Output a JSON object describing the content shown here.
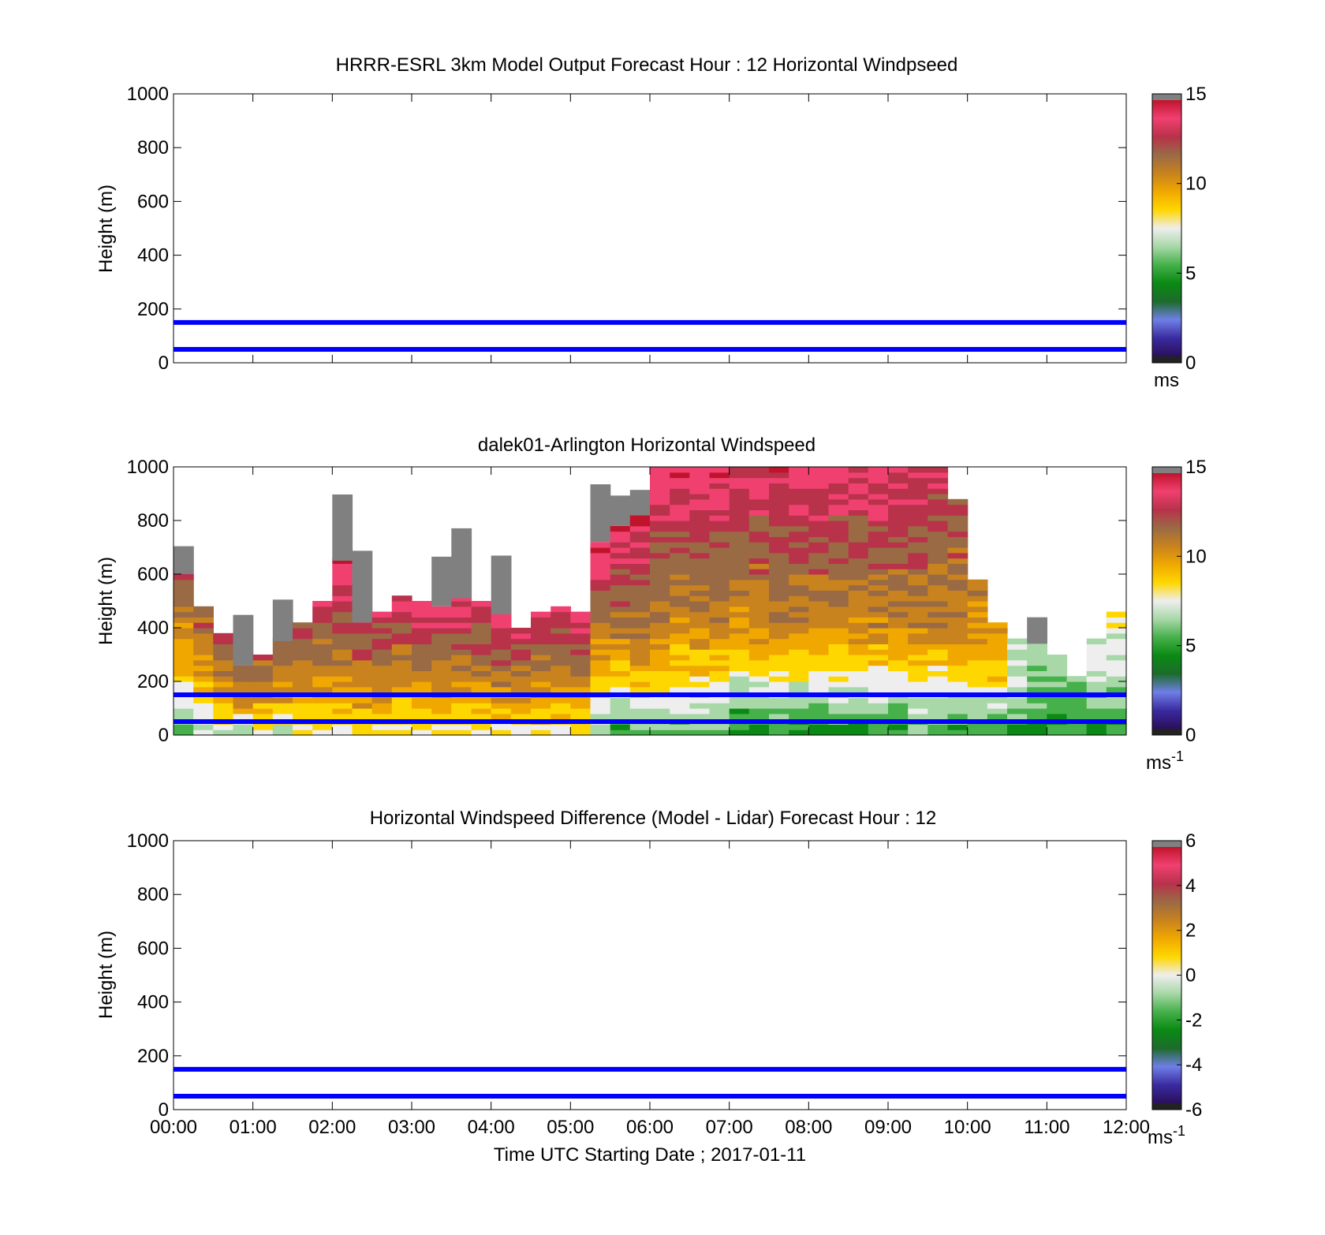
{
  "figure": {
    "xlabel": "Time UTC  Starting Date ; 2017-01-11",
    "x_tick_labels": [
      "00:00",
      "01:00",
      "02:00",
      "03:00",
      "04:00",
      "05:00",
      "06:00",
      "07:00",
      "08:00",
      "09:00",
      "10:00",
      "11:00",
      "12:00"
    ],
    "y_tick_labels": [
      "0",
      "200",
      "400",
      "600",
      "800",
      "1000"
    ]
  },
  "chart_data": [
    {
      "type": "heatmap",
      "title": "HRRR-ESRL 3km Model Output   Forecast Hour : 12 Horizontal Windpseed",
      "ylabel": "Height (m)",
      "xlim": [
        "00:00",
        "12:00"
      ],
      "ylim": [
        0,
        1000
      ],
      "colorbar": {
        "min": 0,
        "max": 15,
        "ticks": [
          "0",
          "5",
          "10",
          "15"
        ],
        "unit": "ms",
        "unit_sup": ""
      },
      "reference_lines_m": [
        150,
        50
      ],
      "reference_line_color": "#0000ff",
      "has_data": false
    },
    {
      "type": "heatmap",
      "title": "dalek01-Arlington  Horizontal Windspeed",
      "ylabel": "Height (m)",
      "xlim": [
        "00:00",
        "12:00"
      ],
      "ylim": [
        0,
        1000
      ],
      "colorbar": {
        "min": 0,
        "max": 15,
        "ticks": [
          "0",
          "5",
          "10",
          "15"
        ],
        "unit": "ms",
        "unit_sup": "-1"
      },
      "reference_lines_m": [
        150,
        50
      ],
      "reference_line_color": "#0000ff",
      "has_data": true,
      "column_width_hours": 0.25,
      "profile_note_units": "ms-1",
      "columns": [
        {
          "t": "00:00",
          "top_m": 600,
          "low": 6,
          "mid": 9,
          "high": 12.5
        },
        {
          "t": "00:15",
          "top_m": 470,
          "low": 7,
          "mid": 9.5,
          "high": 12
        },
        {
          "t": "00:30",
          "top_m": 370,
          "low": 7,
          "mid": 10,
          "high": 12
        },
        {
          "t": "00:45",
          "top_m": 260,
          "low": 6,
          "mid": 10,
          "high": 12
        },
        {
          "t": "01:00",
          "top_m": 300,
          "low": 8,
          "mid": 10,
          "high": 12
        },
        {
          "t": "01:15",
          "top_m": 350,
          "low": 7,
          "mid": 10,
          "high": 12
        },
        {
          "t": "01:30",
          "top_m": 420,
          "low": 8,
          "mid": 10,
          "high": 12.5
        },
        {
          "t": "01:45",
          "top_m": 500,
          "low": 8,
          "mid": 10,
          "high": 13
        },
        {
          "t": "02:00",
          "top_m": 650,
          "low": 8,
          "mid": 11,
          "high": 14
        },
        {
          "t": "02:15",
          "top_m": 420,
          "low": 8,
          "mid": 10.5,
          "high": 13
        },
        {
          "t": "02:30",
          "top_m": 450,
          "low": 8,
          "mid": 10.5,
          "high": 13
        },
        {
          "t": "02:45",
          "top_m": 520,
          "low": 8,
          "mid": 10.5,
          "high": 13.5
        },
        {
          "t": "03:00",
          "top_m": 500,
          "low": 8,
          "mid": 10.5,
          "high": 13.5
        },
        {
          "t": "03:15",
          "top_m": 480,
          "low": 8,
          "mid": 10.5,
          "high": 13.5
        },
        {
          "t": "03:30",
          "top_m": 510,
          "low": 8,
          "mid": 10.5,
          "high": 13.5
        },
        {
          "t": "03:45",
          "top_m": 500,
          "low": 8,
          "mid": 10.5,
          "high": 13.5
        },
        {
          "t": "04:00",
          "top_m": 450,
          "low": 8,
          "mid": 10.5,
          "high": 13.5
        },
        {
          "t": "04:15",
          "top_m": 400,
          "low": 8,
          "mid": 10.5,
          "high": 13
        },
        {
          "t": "04:30",
          "top_m": 460,
          "low": 8,
          "mid": 10.5,
          "high": 13
        },
        {
          "t": "04:45",
          "top_m": 470,
          "low": 8,
          "mid": 10.5,
          "high": 13.5
        },
        {
          "t": "05:00",
          "top_m": 460,
          "low": 8,
          "mid": 10.5,
          "high": 13.5
        },
        {
          "t": "05:15",
          "top_m": 720,
          "low": 6,
          "mid": 10,
          "high": 14
        },
        {
          "t": "05:30",
          "top_m": 780,
          "low": 5,
          "mid": 10,
          "high": 14
        },
        {
          "t": "05:45",
          "top_m": 820,
          "low": 6,
          "mid": 10.5,
          "high": 14
        },
        {
          "t": "06:00",
          "top_m": 1000,
          "low": 6,
          "mid": 10.5,
          "high": 14
        },
        {
          "t": "06:15",
          "top_m": 1000,
          "low": 6,
          "mid": 10.5,
          "high": 14
        },
        {
          "t": "06:30",
          "top_m": 1000,
          "low": 6,
          "mid": 10.5,
          "high": 14
        },
        {
          "t": "06:45",
          "top_m": 1000,
          "low": 6,
          "mid": 10.5,
          "high": 14
        },
        {
          "t": "07:00",
          "top_m": 1000,
          "low": 4.5,
          "mid": 10,
          "high": 13.5
        },
        {
          "t": "07:15",
          "top_m": 1000,
          "low": 5,
          "mid": 10.5,
          "high": 13.5
        },
        {
          "t": "07:30",
          "top_m": 1000,
          "low": 5,
          "mid": 10.5,
          "high": 13.5
        },
        {
          "t": "07:45",
          "top_m": 1000,
          "low": 4.5,
          "mid": 10.5,
          "high": 13.5
        },
        {
          "t": "08:00",
          "top_m": 1000,
          "low": 4.5,
          "mid": 10.5,
          "high": 13.5
        },
        {
          "t": "08:15",
          "top_m": 1000,
          "low": 5,
          "mid": 10.5,
          "high": 13.5
        },
        {
          "t": "08:30",
          "top_m": 1000,
          "low": 5,
          "mid": 10.5,
          "high": 13.5
        },
        {
          "t": "08:45",
          "top_m": 1000,
          "low": 5,
          "mid": 10.5,
          "high": 13.5
        },
        {
          "t": "09:00",
          "top_m": 1000,
          "low": 5,
          "mid": 10.5,
          "high": 13.5
        },
        {
          "t": "09:15",
          "top_m": 1000,
          "low": 5.5,
          "mid": 10.5,
          "high": 13.5
        },
        {
          "t": "09:30",
          "top_m": 1000,
          "low": 5.5,
          "mid": 10.5,
          "high": 13
        },
        {
          "t": "09:45",
          "top_m": 870,
          "low": 5,
          "mid": 10.5,
          "high": 12
        },
        {
          "t": "10:00",
          "top_m": 570,
          "low": 5,
          "mid": 9,
          "high": 11
        },
        {
          "t": "10:15",
          "top_m": 420,
          "low": 5,
          "mid": 8.5,
          "high": 10
        },
        {
          "t": "10:30",
          "top_m": 360,
          "low": 5,
          "mid": 6.5,
          "high": 7.5
        },
        {
          "t": "10:45",
          "top_m": 340,
          "low": 5,
          "mid": 6,
          "high": 7
        },
        {
          "t": "11:00",
          "top_m": 300,
          "low": 5,
          "mid": 6,
          "high": 7
        },
        {
          "t": "11:15",
          "top_m": 220,
          "low": 5,
          "mid": 5.5,
          "high": 6
        },
        {
          "t": "11:30",
          "top_m": 360,
          "low": 5,
          "mid": 6.5,
          "high": 7.5
        },
        {
          "t": "11:45",
          "top_m": 450,
          "low": 5,
          "mid": 6.5,
          "high": 8
        }
      ]
    },
    {
      "type": "heatmap",
      "title": "Horizontal Windspeed Difference (Model - Lidar) Forecast Hour : 12",
      "ylabel": "Height (m)",
      "xlim": [
        "00:00",
        "12:00"
      ],
      "ylim": [
        0,
        1000
      ],
      "colorbar": {
        "min": -6,
        "max": 6,
        "ticks": [
          "-6",
          "-4",
          "-2",
          "0",
          "2",
          "4",
          "6"
        ],
        "unit": "ms",
        "unit_sup": "-1"
      },
      "reference_lines_m": [
        150,
        50
      ],
      "reference_line_color": "#0000ff",
      "has_data": false
    }
  ],
  "colormap": [
    "#222222",
    "#2b0f5a",
    "#3a2aa0",
    "#6f7fe6",
    "#1d6b2c",
    "#0a8a14",
    "#46b04a",
    "#a8d8a8",
    "#eeeeee",
    "#ffd700",
    "#f0a800",
    "#c8821e",
    "#9a6a45",
    "#b8324a",
    "#f04070",
    "#c0142c",
    "#808080"
  ]
}
